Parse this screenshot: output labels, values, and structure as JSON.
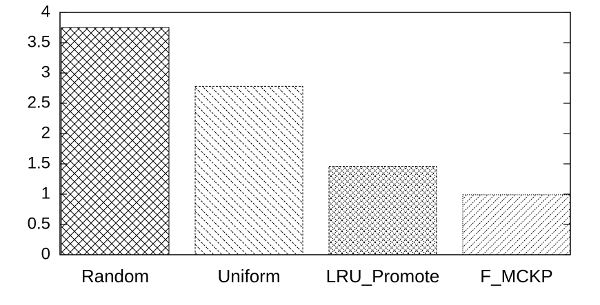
{
  "chart_data": {
    "type": "bar",
    "title": "",
    "xlabel": "",
    "ylabel": "",
    "categories": [
      "Random",
      "Uniform",
      "LRU_Promote",
      "F_MCKP"
    ],
    "values": [
      3.75,
      2.78,
      1.46,
      0.99
    ],
    "ylim": [
      0,
      4
    ],
    "yticks": [
      "0",
      "0.5",
      "1",
      "1.5",
      "2",
      "2.5",
      "3",
      "3.5",
      "4"
    ],
    "grid": false,
    "legend": "none",
    "patterns": [
      "crosshatch",
      "diagonal-dashed",
      "diamond-dots",
      "diagonal-fine"
    ]
  }
}
